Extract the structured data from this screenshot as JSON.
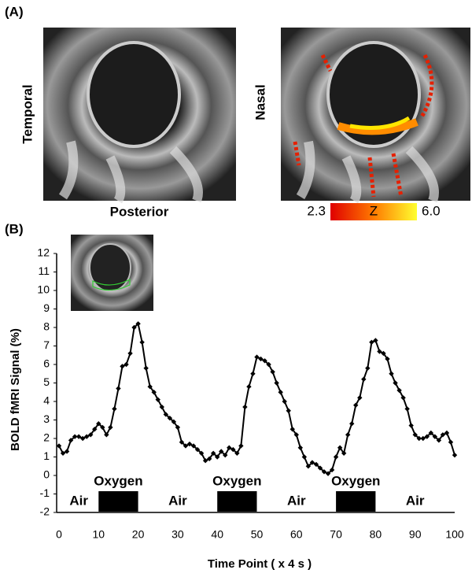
{
  "panel_a": {
    "label": "(A)",
    "left_side_label": "Temporal",
    "bottom_label": "Posterior",
    "right_side_label": "Nasal",
    "colorbar": {
      "min_label": "2.3",
      "mid_label": "Z",
      "max_label": "6.0"
    }
  },
  "chart_data": {
    "type": "line",
    "panel_label": "(B)",
    "x_label": "Time Point  ( x 4 s )",
    "y_label": "BOLD fMRI Signal (%)",
    "x": [
      0,
      1,
      2,
      3,
      4,
      5,
      6,
      7,
      8,
      9,
      10,
      11,
      12,
      13,
      14,
      15,
      16,
      17,
      18,
      19,
      20,
      21,
      22,
      23,
      24,
      25,
      26,
      27,
      28,
      29,
      30,
      31,
      32,
      33,
      34,
      35,
      36,
      37,
      38,
      39,
      40,
      41,
      42,
      43,
      44,
      45,
      46,
      47,
      48,
      49,
      50,
      51,
      52,
      53,
      54,
      55,
      56,
      57,
      58,
      59,
      60,
      61,
      62,
      63,
      64,
      65,
      66,
      67,
      68,
      69,
      70,
      71,
      72,
      73,
      74,
      75,
      76,
      77,
      78,
      79,
      80,
      81,
      82,
      83,
      84,
      85,
      86,
      87,
      88,
      89,
      90,
      91,
      92,
      93,
      94,
      95,
      96,
      97,
      98,
      99,
      100
    ],
    "values": [
      1.6,
      1.2,
      1.3,
      1.9,
      2.1,
      2.1,
      2.0,
      2.1,
      2.2,
      2.5,
      2.8,
      2.6,
      2.2,
      2.6,
      3.6,
      4.7,
      5.9,
      6.0,
      6.6,
      8.0,
      8.2,
      7.2,
      5.8,
      4.8,
      4.5,
      4.1,
      3.7,
      3.3,
      3.1,
      2.9,
      2.6,
      1.8,
      1.6,
      1.7,
      1.6,
      1.4,
      1.2,
      0.8,
      0.9,
      1.2,
      1.0,
      1.3,
      1.1,
      1.5,
      1.4,
      1.2,
      1.6,
      3.7,
      4.8,
      5.5,
      6.4,
      6.3,
      6.2,
      6.0,
      5.6,
      5.0,
      4.5,
      4.0,
      3.5,
      2.5,
      2.2,
      1.5,
      1.0,
      0.5,
      0.7,
      0.6,
      0.4,
      0.2,
      0.1,
      0.3,
      1.0,
      1.5,
      1.2,
      2.2,
      2.8,
      3.8,
      4.2,
      5.2,
      5.8,
      7.2,
      7.3,
      6.7,
      6.6,
      6.3,
      5.5,
      5.0,
      4.6,
      4.2,
      3.6,
      2.7,
      2.2,
      2.0,
      2.0,
      2.1,
      2.3,
      2.1,
      1.9,
      2.2,
      2.3,
      1.8,
      1.1
    ],
    "color": "#000000",
    "xlim": [
      0,
      100
    ],
    "xticks": [
      0,
      10,
      20,
      30,
      40,
      50,
      60,
      70,
      80,
      90,
      100
    ],
    "ylim": [
      -2,
      12
    ],
    "yticks": [
      -2,
      -1,
      0,
      1,
      2,
      3,
      4,
      5,
      6,
      7,
      8,
      9,
      10,
      11,
      12
    ],
    "blocks": [
      {
        "start": 10,
        "end": 20,
        "label": "Oxygen"
      },
      {
        "start": 40,
        "end": 50,
        "label": "Oxygen"
      },
      {
        "start": 70,
        "end": 80,
        "label": "Oxygen"
      }
    ],
    "gap_label": "Air"
  }
}
